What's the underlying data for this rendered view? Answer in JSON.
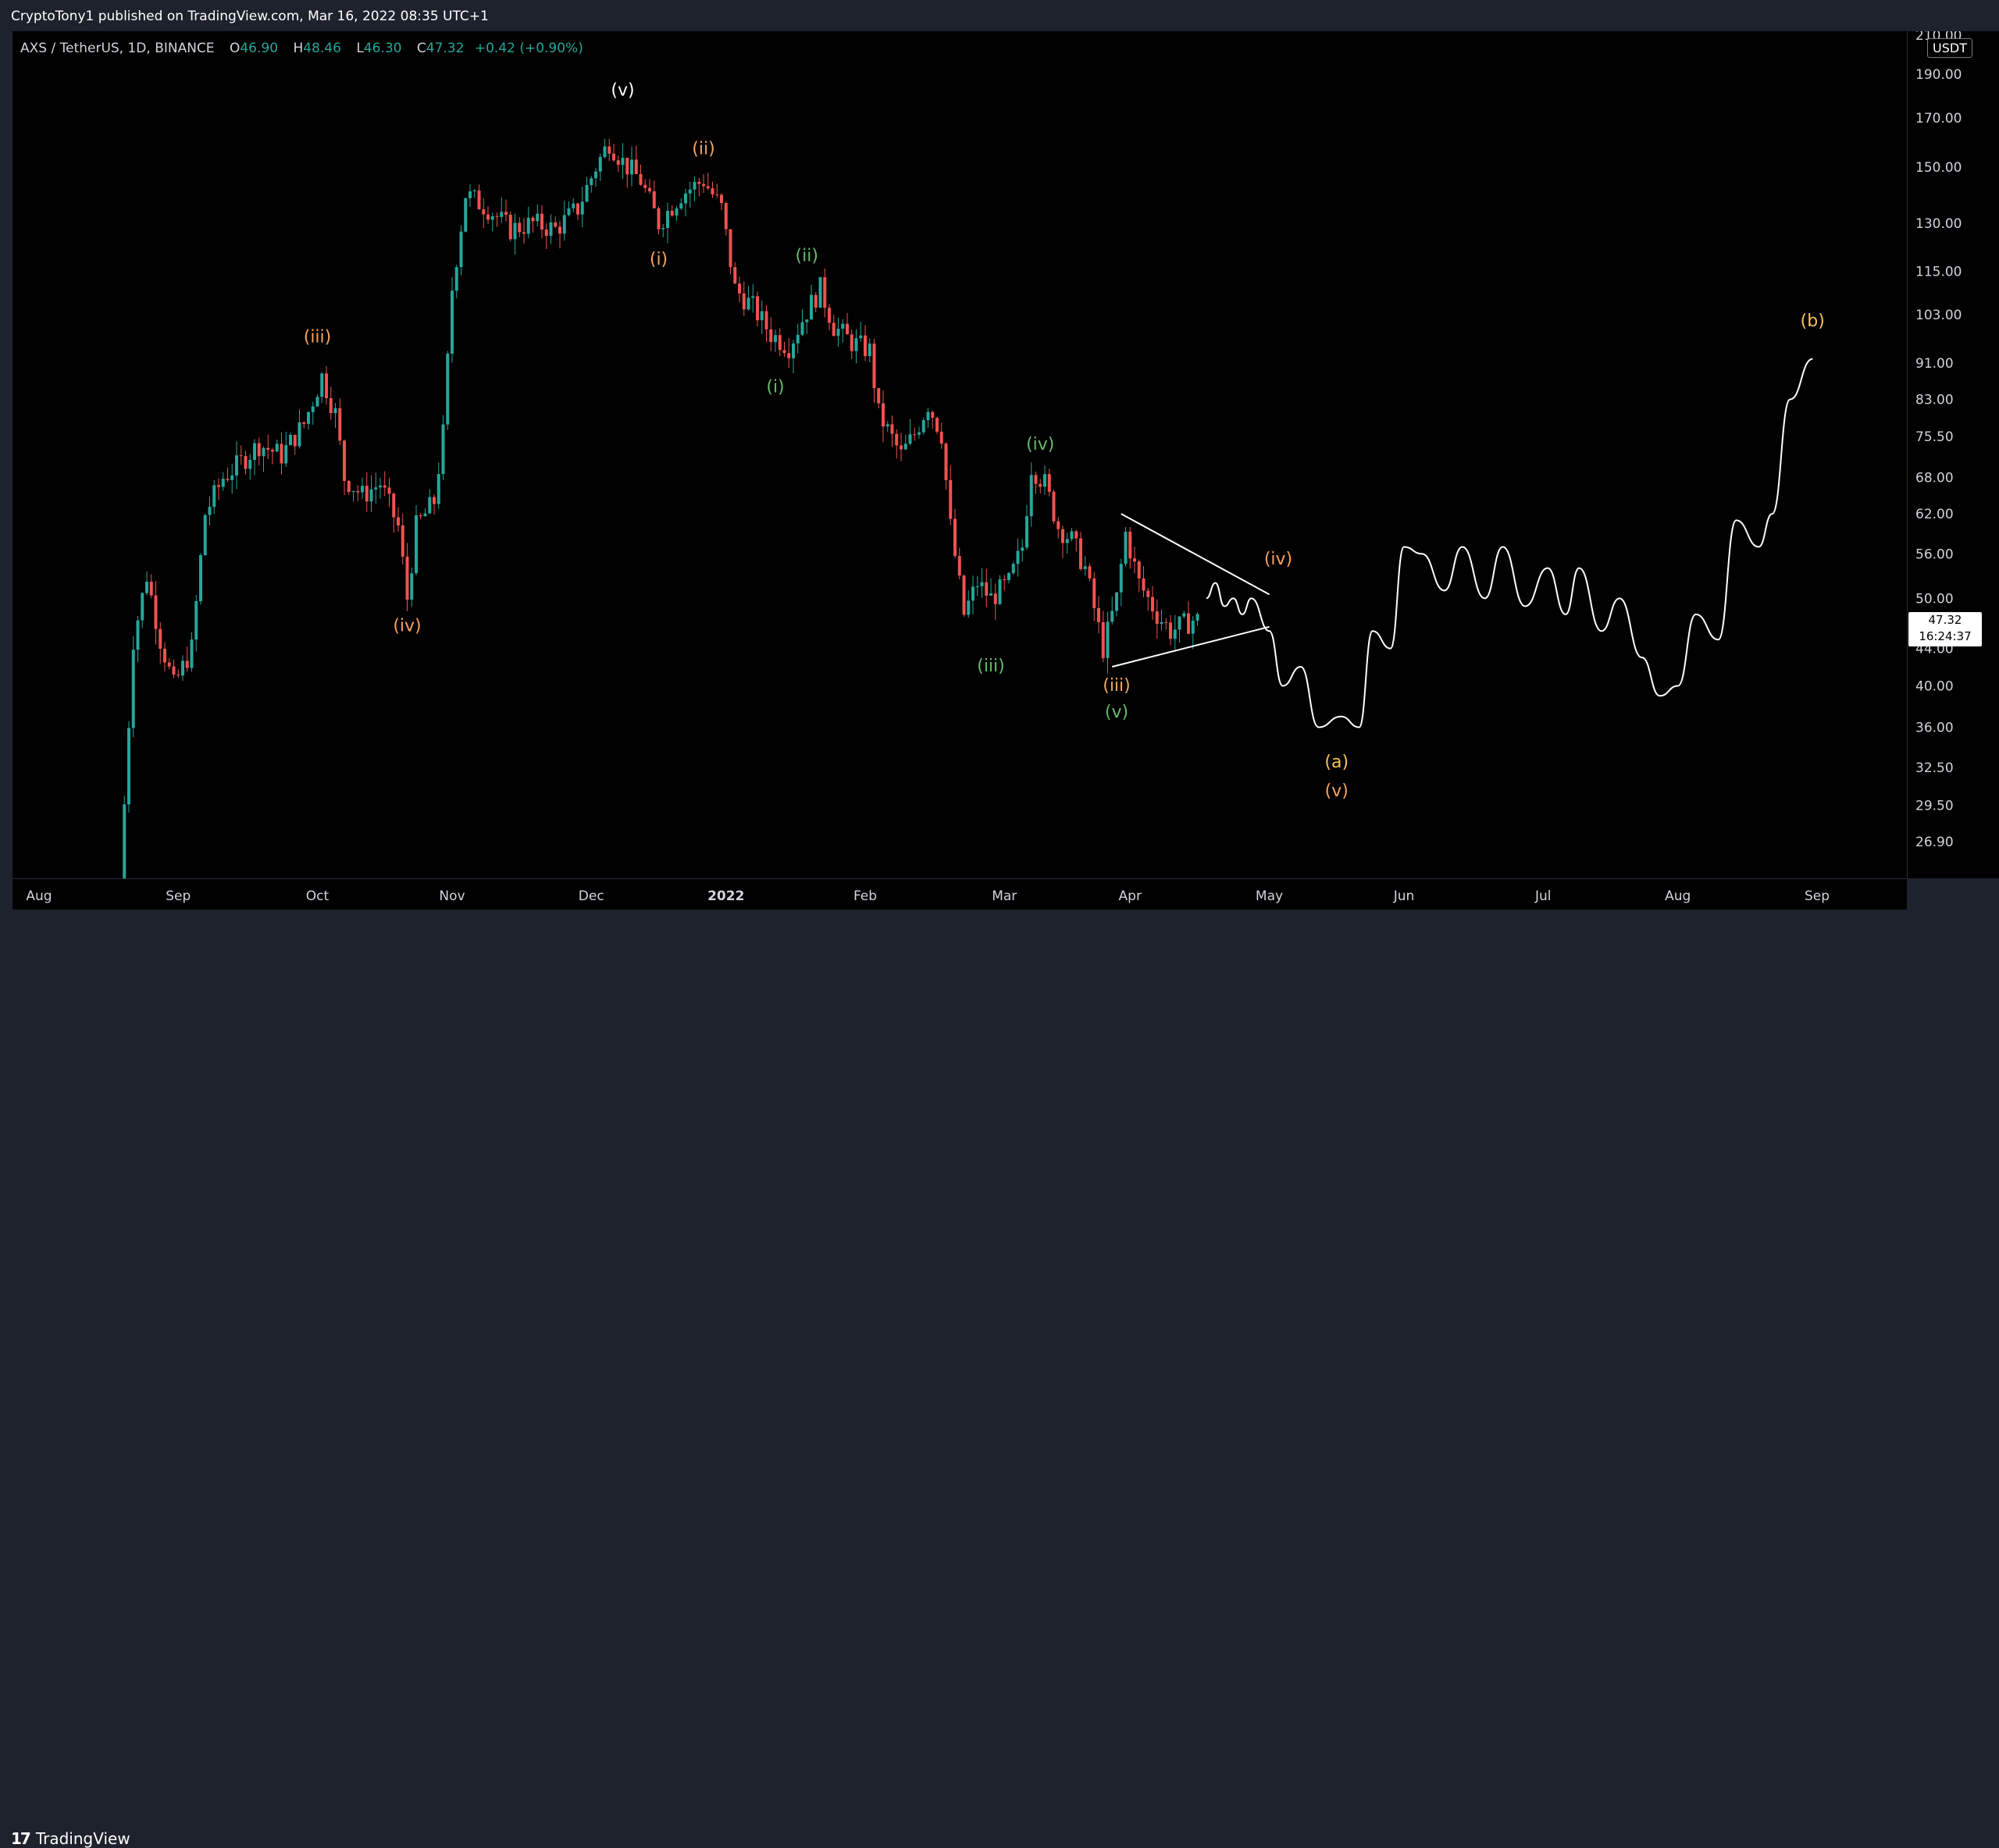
{
  "header": {
    "published_text": "CryptoTony1 published on TradingView.com, Mar 16, 2022 08:35 UTC+1"
  },
  "legend": {
    "symbol": "AXS / TetherUS, 1D, BINANCE",
    "open_label": "O",
    "open": "46.90",
    "high_label": "H",
    "high": "48.46",
    "low_label": "L",
    "low": "46.30",
    "close_label": "C",
    "close": "47.32",
    "change": "+0.42 (+0.90%)"
  },
  "price_axis": {
    "currency": "USDT",
    "current_price": "47.32",
    "countdown": "16:24:37"
  },
  "footer": {
    "brand": "TradingView",
    "logo_icon": "tradingview-logo-icon"
  },
  "colors": {
    "up": "#26a69a",
    "down": "#ef5350",
    "wave_orange": "#f7a35c",
    "wave_green": "#66bb6a",
    "wave_yellow": "#f5c35c",
    "drawing": "#ffffff"
  },
  "chart_data": {
    "type": "candlestick",
    "title": "AXS / TetherUS, 1D, BINANCE",
    "y_scale": "log",
    "ylim": [
      24.5,
      212
    ],
    "y_ticks": [
      "210.00",
      "190.00",
      "170.00",
      "150.00",
      "130.00",
      "115.00",
      "103.00",
      "91.00",
      "83.00",
      "75.50",
      "68.00",
      "62.00",
      "56.00",
      "50.00",
      "44.00",
      "40.00",
      "36.00",
      "32.50",
      "29.50",
      "26.90"
    ],
    "x_ticks": [
      "Aug",
      "Sep",
      "Oct",
      "Nov",
      "Dec",
      "2022",
      "Feb",
      "Mar",
      "Apr",
      "May",
      "Jun",
      "Jul",
      "Aug",
      "Sep"
    ],
    "price_path": [
      [
        "2021-07-20",
        24
      ],
      [
        "2021-07-23",
        45
      ],
      [
        "2021-07-26",
        53
      ],
      [
        "2021-07-29",
        45
      ],
      [
        "2021-08-01",
        40
      ],
      [
        "2021-08-05",
        44
      ],
      [
        "2021-08-08",
        62
      ],
      [
        "2021-08-12",
        68
      ],
      [
        "2021-08-15",
        70
      ],
      [
        "2021-08-20",
        74
      ],
      [
        "2021-08-25",
        72
      ],
      [
        "2021-08-30",
        78
      ],
      [
        "2021-09-03",
        88
      ],
      [
        "2021-09-06",
        80
      ],
      [
        "2021-09-08",
        68
      ],
      [
        "2021-09-12",
        65
      ],
      [
        "2021-09-16",
        67
      ],
      [
        "2021-09-20",
        60
      ],
      [
        "2021-09-22",
        50
      ],
      [
        "2021-09-24",
        60
      ],
      [
        "2021-09-28",
        64
      ],
      [
        "2021-09-30",
        76
      ],
      [
        "2021-10-02",
        110
      ],
      [
        "2021-10-05",
        140
      ],
      [
        "2021-10-10",
        135
      ],
      [
        "2021-10-15",
        128
      ],
      [
        "2021-10-20",
        130
      ],
      [
        "2021-10-25",
        128
      ],
      [
        "2021-10-30",
        135
      ],
      [
        "2021-11-03",
        150
      ],
      [
        "2021-11-06",
        160
      ],
      [
        "2021-11-09",
        152
      ],
      [
        "2021-11-13",
        145
      ],
      [
        "2021-11-17",
        130
      ],
      [
        "2021-11-22",
        140
      ],
      [
        "2021-11-27",
        145
      ],
      [
        "2021-12-01",
        135
      ],
      [
        "2021-12-04",
        110
      ],
      [
        "2021-12-08",
        105
      ],
      [
        "2021-12-12",
        98
      ],
      [
        "2021-12-16",
        95
      ],
      [
        "2021-12-20",
        104
      ],
      [
        "2021-12-23",
        110
      ],
      [
        "2021-12-26",
        100
      ],
      [
        "2021-12-30",
        96
      ],
      [
        "2022-01-03",
        94
      ],
      [
        "2022-01-05",
        80
      ],
      [
        "2022-01-10",
        72
      ],
      [
        "2022-01-13",
        76
      ],
      [
        "2022-01-16",
        82
      ],
      [
        "2022-01-19",
        76
      ],
      [
        "2022-01-21",
        60
      ],
      [
        "2022-01-24",
        48
      ],
      [
        "2022-01-27",
        52
      ],
      [
        "2022-01-30",
        50
      ],
      [
        "2022-02-03",
        52
      ],
      [
        "2022-02-06",
        57
      ],
      [
        "2022-02-08",
        70
      ],
      [
        "2022-02-11",
        67
      ],
      [
        "2022-02-14",
        60
      ],
      [
        "2022-02-17",
        58
      ],
      [
        "2022-02-20",
        54
      ],
      [
        "2022-02-24",
        44
      ],
      [
        "2022-02-27",
        50
      ],
      [
        "2022-03-01",
        59
      ],
      [
        "2022-03-04",
        52
      ],
      [
        "2022-03-08",
        48
      ],
      [
        "2022-03-11",
        46
      ],
      [
        "2022-03-16",
        47.32
      ]
    ],
    "projection_path": [
      [
        "2022-03-18",
        50
      ],
      [
        "2022-03-20",
        52
      ],
      [
        "2022-03-22",
        49
      ],
      [
        "2022-03-24",
        50
      ],
      [
        "2022-03-26",
        48
      ],
      [
        "2022-03-28",
        50
      ],
      [
        "2022-04-01",
        46
      ],
      [
        "2022-04-04",
        40
      ],
      [
        "2022-04-08",
        42
      ],
      [
        "2022-04-12",
        36
      ],
      [
        "2022-04-17",
        37
      ],
      [
        "2022-04-21",
        36
      ],
      [
        "2022-04-24",
        46
      ],
      [
        "2022-04-28",
        44
      ],
      [
        "2022-05-01",
        57
      ],
      [
        "2022-05-05",
        56
      ],
      [
        "2022-05-10",
        51
      ],
      [
        "2022-05-14",
        57
      ],
      [
        "2022-05-19",
        50
      ],
      [
        "2022-05-23",
        57
      ],
      [
        "2022-05-28",
        49
      ],
      [
        "2022-06-02",
        54
      ],
      [
        "2022-06-06",
        48
      ],
      [
        "2022-06-09",
        54
      ],
      [
        "2022-06-14",
        46
      ],
      [
        "2022-06-18",
        50
      ],
      [
        "2022-06-23",
        43
      ],
      [
        "2022-06-27",
        39
      ],
      [
        "2022-07-01",
        40
      ],
      [
        "2022-07-05",
        48
      ],
      [
        "2022-07-10",
        45
      ],
      [
        "2022-07-14",
        61
      ],
      [
        "2022-07-19",
        57
      ],
      [
        "2022-07-22",
        62
      ],
      [
        "2022-07-26",
        83
      ],
      [
        "2022-07-31",
        92
      ]
    ],
    "triangle_lines": [
      {
        "from": [
          "2022-02-27",
          62
        ],
        "to": [
          "2022-04-01",
          50.5
        ]
      },
      {
        "from": [
          "2022-02-25",
          42
        ],
        "to": [
          "2022-04-01",
          46.5
        ]
      }
    ],
    "wave_labels": [
      {
        "text": "(iii)",
        "date": "2021-09-01",
        "price": 96,
        "color": "orange"
      },
      {
        "text": "(iv)",
        "date": "2021-09-21",
        "price": 46,
        "color": "orange"
      },
      {
        "text": "(v)",
        "date": "2021-11-08",
        "price": 180,
        "color": "white"
      },
      {
        "text": "(i)",
        "date": "2021-11-16",
        "price": 117,
        "color": "orange"
      },
      {
        "text": "(ii)",
        "date": "2021-11-26",
        "price": 155,
        "color": "orange"
      },
      {
        "text": "(ii)",
        "date": "2021-12-19",
        "price": 118,
        "color": "green"
      },
      {
        "text": "(i)",
        "date": "2021-12-12",
        "price": 84.5,
        "color": "green"
      },
      {
        "text": "(iv)",
        "date": "2022-02-09",
        "price": 73,
        "color": "green"
      },
      {
        "text": "(iii)",
        "date": "2022-01-29",
        "price": 41.5,
        "color": "green"
      },
      {
        "text": "(iii)",
        "date": "2022-02-26",
        "price": 39.5,
        "color": "orange"
      },
      {
        "text": "(v)",
        "date": "2022-02-26",
        "price": 36.9,
        "color": "green"
      },
      {
        "text": "(iv)",
        "date": "2022-04-03",
        "price": 54.5,
        "color": "orange"
      },
      {
        "text": "(a)",
        "date": "2022-04-16",
        "price": 32.5,
        "color": "yellow"
      },
      {
        "text": "(v)",
        "date": "2022-04-16",
        "price": 30.2,
        "color": "orange"
      },
      {
        "text": "(b)",
        "date": "2022-07-31",
        "price": 100,
        "color": "yellow"
      }
    ]
  }
}
